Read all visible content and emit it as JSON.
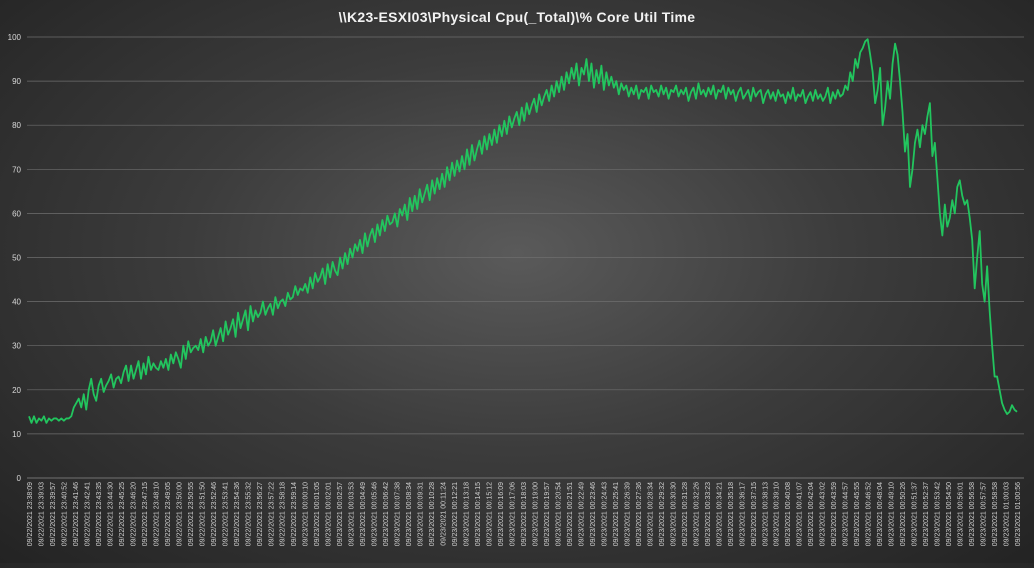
{
  "chart_data": {
    "type": "line",
    "title": "\\\\K23-ESXI03\\Physical Cpu(_Total)\\% Core Util Time",
    "xlabel": "",
    "ylabel": "",
    "ylim": [
      0,
      100
    ],
    "y_ticks": [
      0,
      10,
      20,
      30,
      40,
      50,
      60,
      70,
      80,
      90,
      100
    ],
    "grid": true,
    "legend": "none",
    "line_color": "#22c55e",
    "x_tick_labels": [
      "09/22/2021 23:38:09",
      "09/22/2021 23:39:03",
      "09/22/2021 23:39:57",
      "09/22/2021 23:40:52",
      "09/22/2021 23:41:46",
      "09/22/2021 23:42:41",
      "09/22/2021 23:43:35",
      "09/22/2021 23:44:30",
      "09/22/2021 23:45:25",
      "09/22/2021 23:46:20",
      "09/22/2021 23:47:15",
      "09/22/2021 23:48:10",
      "09/22/2021 23:49:05",
      "09/22/2021 23:50:00",
      "09/22/2021 23:50:55",
      "09/22/2021 23:51:50",
      "09/22/2021 23:52:46",
      "09/22/2021 23:53:41",
      "09/22/2021 23:54:36",
      "09/22/2021 23:55:32",
      "09/22/2021 23:56:27",
      "09/22/2021 23:57:22",
      "09/22/2021 23:58:18",
      "09/22/2021 23:59:14",
      "09/23/2021 00:00:10",
      "09/23/2021 00:01:05",
      "09/23/2021 00:02:01",
      "09/23/2021 00:02:57",
      "09/23/2021 00:03:53",
      "09/23/2021 00:04:49",
      "09/23/2021 00:05:46",
      "09/23/2021 00:06:42",
      "09/23/2021 00:07:38",
      "09/23/2021 00:08:34",
      "09/23/2021 00:09:31",
      "09/23/2021 00:10:28",
      "09/23/2021 00:11:24",
      "09/23/2021 00:12:21",
      "09/23/2021 00:13:18",
      "09/23/2021 00:14:15",
      "09/23/2021 00:15:12",
      "09/23/2021 00:16:09",
      "09/23/2021 00:17:06",
      "09/23/2021 00:18:03",
      "09/23/2021 00:19:00",
      "09/23/2021 00:19:57",
      "09/23/2021 00:20:54",
      "09/23/2021 00:21:51",
      "09/23/2021 00:22:49",
      "09/23/2021 00:23:46",
      "09/23/2021 00:24:43",
      "09/23/2021 00:25:41",
      "09/23/2021 00:26:39",
      "09/23/2021 00:27:36",
      "09/23/2021 00:28:34",
      "09/23/2021 00:29:32",
      "09/23/2021 00:30:30",
      "09/23/2021 00:31:28",
      "09/23/2021 00:32:26",
      "09/23/2021 00:33:23",
      "09/23/2021 00:34:21",
      "09/23/2021 00:35:18",
      "09/23/2021 00:36:17",
      "09/23/2021 00:37:15",
      "09/23/2021 00:38:13",
      "09/23/2021 00:39:10",
      "09/23/2021 00:40:08",
      "09/23/2021 00:41:07",
      "09/23/2021 00:42:04",
      "09/23/2021 00:43:02",
      "09/23/2021 00:43:59",
      "09/23/2021 00:44:57",
      "09/23/2021 00:45:55",
      "09/23/2021 00:46:52",
      "09/23/2021 00:48:04",
      "09/23/2021 00:49:10",
      "09/23/2021 00:50:26",
      "09/23/2021 00:51:37",
      "09/23/2021 00:52:37",
      "09/23/2021 00:53:42",
      "09/23/2021 00:54:50",
      "09/23/2021 00:56:01",
      "09/23/2021 00:56:58",
      "09/23/2021 00:57:57",
      "09/23/2021 00:58:58",
      "09/23/2021 01:00:03",
      "09/23/2021 01:00:56"
    ],
    "series": [
      {
        "name": "",
        "values": [
          14,
          12.5,
          14,
          12.5,
          13.5,
          13,
          14,
          12.5,
          13.5,
          13,
          13.5,
          13.5,
          13,
          13.5,
          13,
          13.5,
          13.5,
          14,
          16,
          17,
          18,
          16,
          19,
          15.5,
          20,
          22.5,
          19,
          17.5,
          21,
          22.5,
          19.5,
          21,
          22,
          23.5,
          20.5,
          22.5,
          23,
          21.5,
          24,
          25.5,
          22,
          25.5,
          22.5,
          24.5,
          26.5,
          22.5,
          26,
          23.5,
          27.5,
          24.5,
          26,
          25,
          24.5,
          26.5,
          25,
          27,
          24.5,
          28,
          26,
          28.5,
          27,
          25,
          30,
          27,
          31,
          28.5,
          29.5,
          30,
          29,
          31.5,
          28.5,
          32,
          30,
          31,
          33.5,
          30,
          32,
          34,
          31,
          35.5,
          32.5,
          34,
          36,
          32,
          37.5,
          34,
          36,
          38,
          33.5,
          39,
          35.5,
          38,
          36.5,
          37.5,
          40,
          37,
          38.5,
          39.5,
          37,
          41,
          38.5,
          40,
          40.5,
          39,
          42,
          40.5,
          41,
          43.5,
          41.5,
          43,
          42.5,
          44,
          42,
          45.5,
          43,
          46.5,
          44.5,
          45.5,
          47.5,
          44,
          48.5,
          45.5,
          49,
          47,
          46,
          50,
          47.5,
          51,
          48.5,
          52,
          50,
          53,
          51.5,
          54,
          51,
          55.5,
          52.5,
          55,
          56.5,
          53.5,
          57.5,
          55,
          58.5,
          56,
          59.5,
          57.5,
          58,
          60,
          57,
          61,
          59.5,
          62,
          58.5,
          63.5,
          60.5,
          64,
          61,
          65.5,
          62.5,
          64.5,
          66.5,
          63,
          67.5,
          64.5,
          68,
          65.5,
          69,
          66,
          70.5,
          67.5,
          71.5,
          68.5,
          72,
          69.5,
          73,
          70,
          74.5,
          71,
          75.5,
          72,
          74.5,
          76.5,
          73.5,
          77.5,
          74.5,
          78,
          75.5,
          79,
          76,
          80,
          77.5,
          81,
          78,
          82,
          79.5,
          81.5,
          83,
          80,
          84,
          81,
          85,
          82.5,
          84.5,
          86,
          83,
          87,
          84.5,
          86.5,
          88,
          85.5,
          89,
          86.5,
          90,
          87.5,
          91,
          88,
          92,
          89.5,
          93,
          90.5,
          94,
          89,
          93,
          91.5,
          95,
          90,
          94,
          88.5,
          92.5,
          89.5,
          93.5,
          88,
          92,
          89,
          91,
          88.5,
          90,
          87,
          89.5,
          88,
          89,
          86.5,
          88.5,
          87,
          89,
          86,
          88,
          87.5,
          88.5,
          86,
          89,
          87.5,
          88,
          86.5,
          89,
          87,
          88.5,
          86,
          88,
          87.5,
          89,
          86.5,
          88,
          87,
          88.5,
          85.5,
          87.5,
          88.5,
          86,
          89.5,
          87,
          88,
          86.5,
          88.5,
          87,
          89,
          86,
          88,
          87.5,
          89,
          86,
          88.5,
          87,
          88,
          85.5,
          87.5,
          88.5,
          86,
          87,
          88,
          85.5,
          88.5,
          86.5,
          87.5,
          88,
          85,
          87,
          88,
          86,
          87.5,
          85.5,
          88,
          86.5,
          87,
          85,
          87.5,
          86,
          88.5,
          85.5,
          87,
          86.5,
          88,
          85,
          86.5,
          87.5,
          85.5,
          88,
          86,
          87,
          85.5,
          86.5,
          88.5,
          85,
          87.5,
          86,
          88,
          86.5,
          87,
          89,
          88,
          92,
          90,
          95,
          93,
          96.5,
          97.5,
          99,
          99.5,
          96,
          92,
          85,
          88,
          93,
          80,
          84,
          90,
          86,
          94,
          98.5,
          96,
          90,
          83,
          74,
          78,
          66,
          70,
          76,
          79,
          75,
          80,
          78,
          82,
          85,
          73,
          76,
          68,
          60,
          55,
          62,
          57,
          59,
          63,
          60,
          66,
          67.5,
          64,
          62,
          63,
          59,
          54,
          43,
          50,
          56,
          44,
          40,
          48,
          38,
          30,
          23,
          23,
          20,
          17,
          15.5,
          14.5,
          15,
          16.5,
          15.5,
          15
        ]
      }
    ]
  }
}
